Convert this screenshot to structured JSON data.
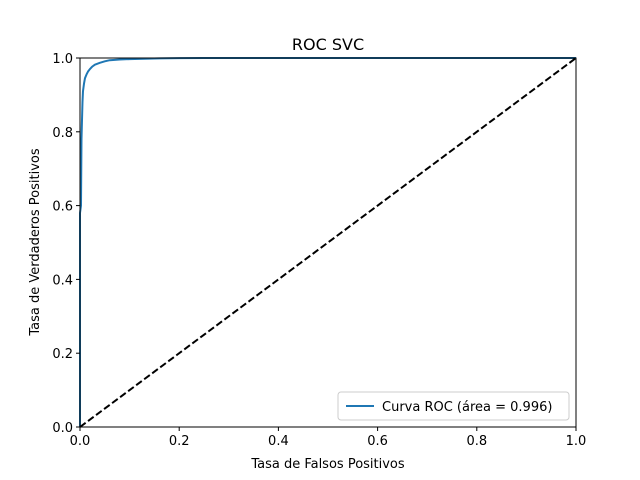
{
  "chart_data": {
    "type": "line",
    "title": "ROC SVC",
    "xlabel": "Tasa de Falsos Positivos",
    "ylabel": "Tasa de Verdaderos Positivos",
    "xlim": [
      0.0,
      1.0
    ],
    "ylim": [
      0.0,
      1.0
    ],
    "xticks": [
      "0.0",
      "0.2",
      "0.4",
      "0.6",
      "0.8",
      "1.0"
    ],
    "yticks": [
      "0.0",
      "0.2",
      "0.4",
      "0.6",
      "0.8",
      "1.0"
    ],
    "grid": false,
    "legend_position": "lower-right",
    "series": [
      {
        "name": "Curva ROC (área = 0.996)",
        "color": "#1f77b4",
        "style": "solid",
        "x": [
          0.0,
          0.0,
          0.002,
          0.003,
          0.005,
          0.006,
          0.008,
          0.01,
          0.013,
          0.016,
          0.02,
          0.025,
          0.03,
          0.04,
          0.05,
          0.06,
          0.08,
          0.1,
          0.13,
          0.16,
          0.2,
          0.25,
          0.3,
          0.5,
          1.0
        ],
        "y": [
          0.0,
          0.58,
          0.6,
          0.78,
          0.88,
          0.91,
          0.93,
          0.945,
          0.955,
          0.963,
          0.97,
          0.977,
          0.982,
          0.987,
          0.991,
          0.994,
          0.996,
          0.997,
          0.998,
          0.999,
          0.9995,
          1.0,
          1.0,
          1.0,
          1.0
        ]
      },
      {
        "name": "",
        "color": "#000000",
        "style": "dashed",
        "x": [
          0.0,
          1.0
        ],
        "y": [
          0.0,
          1.0
        ]
      }
    ]
  }
}
